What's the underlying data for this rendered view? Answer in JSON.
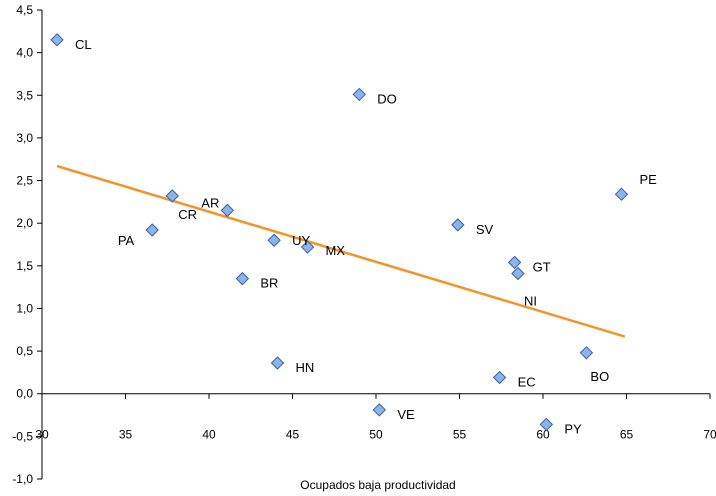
{
  "chart_data": {
    "type": "scatter",
    "title": "",
    "xlabel": "Ocupados baja productividad",
    "ylabel": "",
    "xlim": [
      30,
      70
    ],
    "ylim": [
      -1.0,
      4.5
    ],
    "x_ticks": [
      30,
      35,
      40,
      45,
      50,
      55,
      60,
      65,
      70
    ],
    "y_ticks": [
      -1.0,
      -0.5,
      0.0,
      0.5,
      1.0,
      1.5,
      2.0,
      2.5,
      3.0,
      3.5,
      4.0,
      4.5
    ],
    "x_tick_labels": [
      "30",
      "35",
      "40",
      "45",
      "50",
      "55",
      "60",
      "65",
      "70"
    ],
    "y_tick_labels": [
      "-1,0",
      "-0,5",
      "0,0",
      "0,5",
      "1,0",
      "1,5",
      "2,0",
      "2,5",
      "3,0",
      "3,5",
      "4,0",
      "4,5"
    ],
    "grid": false,
    "points": [
      {
        "label": "CL",
        "x": 30.9,
        "y": 4.15
      },
      {
        "label": "DO",
        "x": 49.0,
        "y": 3.51
      },
      {
        "label": "PE",
        "x": 64.7,
        "y": 2.34
      },
      {
        "label": "CR",
        "x": 37.8,
        "y": 2.32
      },
      {
        "label": "AR",
        "x": 41.1,
        "y": 2.15
      },
      {
        "label": "SV",
        "x": 54.9,
        "y": 1.98
      },
      {
        "label": "PA",
        "x": 36.6,
        "y": 1.92
      },
      {
        "label": "UY",
        "x": 43.9,
        "y": 1.8
      },
      {
        "label": "MX",
        "x": 45.9,
        "y": 1.72
      },
      {
        "label": "GT",
        "x": 58.3,
        "y": 1.54
      },
      {
        "label": "NI",
        "x": 58.5,
        "y": 1.41
      },
      {
        "label": "BR",
        "x": 42.0,
        "y": 1.35
      },
      {
        "label": "BO",
        "x": 62.6,
        "y": 0.48
      },
      {
        "label": "HN",
        "x": 44.1,
        "y": 0.36
      },
      {
        "label": "EC",
        "x": 57.4,
        "y": 0.19
      },
      {
        "label": "VE",
        "x": 50.2,
        "y": -0.19
      },
      {
        "label": "PY",
        "x": 60.2,
        "y": -0.36
      }
    ],
    "trendline": {
      "color": "#f5932a",
      "x": [
        30.9,
        64.9
      ],
      "y": [
        2.67,
        0.67
      ]
    },
    "marker_color": "#8cb4e8",
    "marker_edge_color": "#3a5fa6"
  }
}
